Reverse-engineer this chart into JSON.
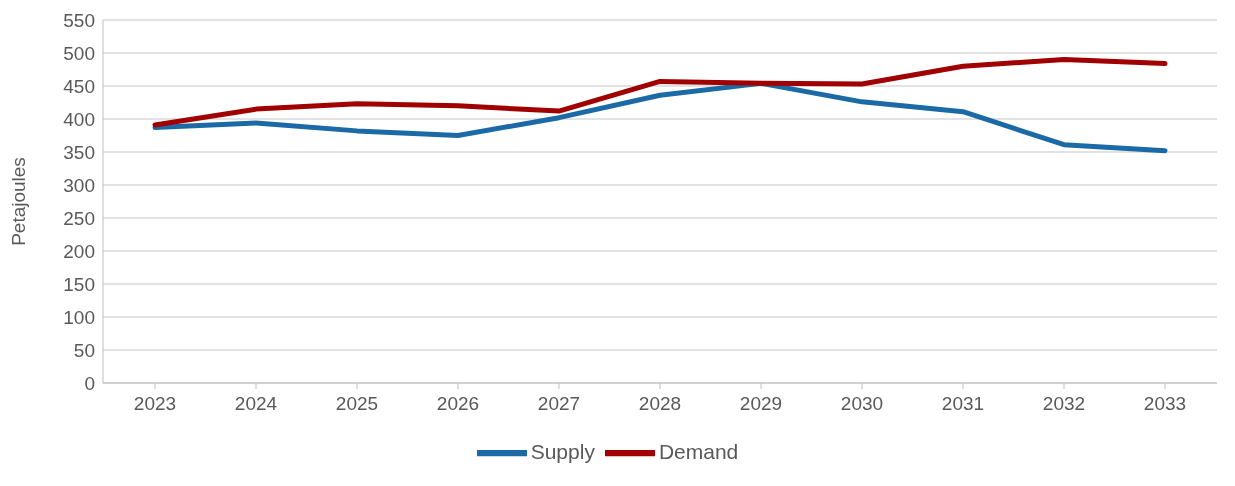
{
  "chart_data": {
    "type": "line",
    "ylabel": "Petajoules",
    "categories": [
      "2023",
      "2024",
      "2025",
      "2026",
      "2027",
      "2028",
      "2029",
      "2030",
      "2031",
      "2032",
      "2033"
    ],
    "series": [
      {
        "name": "Supply",
        "color": "#1b6aa5",
        "values": [
          387,
          394,
          382,
          375,
          402,
          436,
          454,
          426,
          411,
          361,
          352
        ]
      },
      {
        "name": "Demand",
        "color": "#a00000",
        "values": [
          391,
          415,
          423,
          420,
          412,
          457,
          454,
          453,
          480,
          490,
          484
        ]
      }
    ],
    "ylim": [
      0,
      550
    ],
    "yticks": [
      0,
      50,
      100,
      150,
      200,
      250,
      300,
      350,
      400,
      450,
      500,
      550
    ],
    "grid": "y",
    "legend": "bottom",
    "marker": "none",
    "line_style": "solid"
  }
}
